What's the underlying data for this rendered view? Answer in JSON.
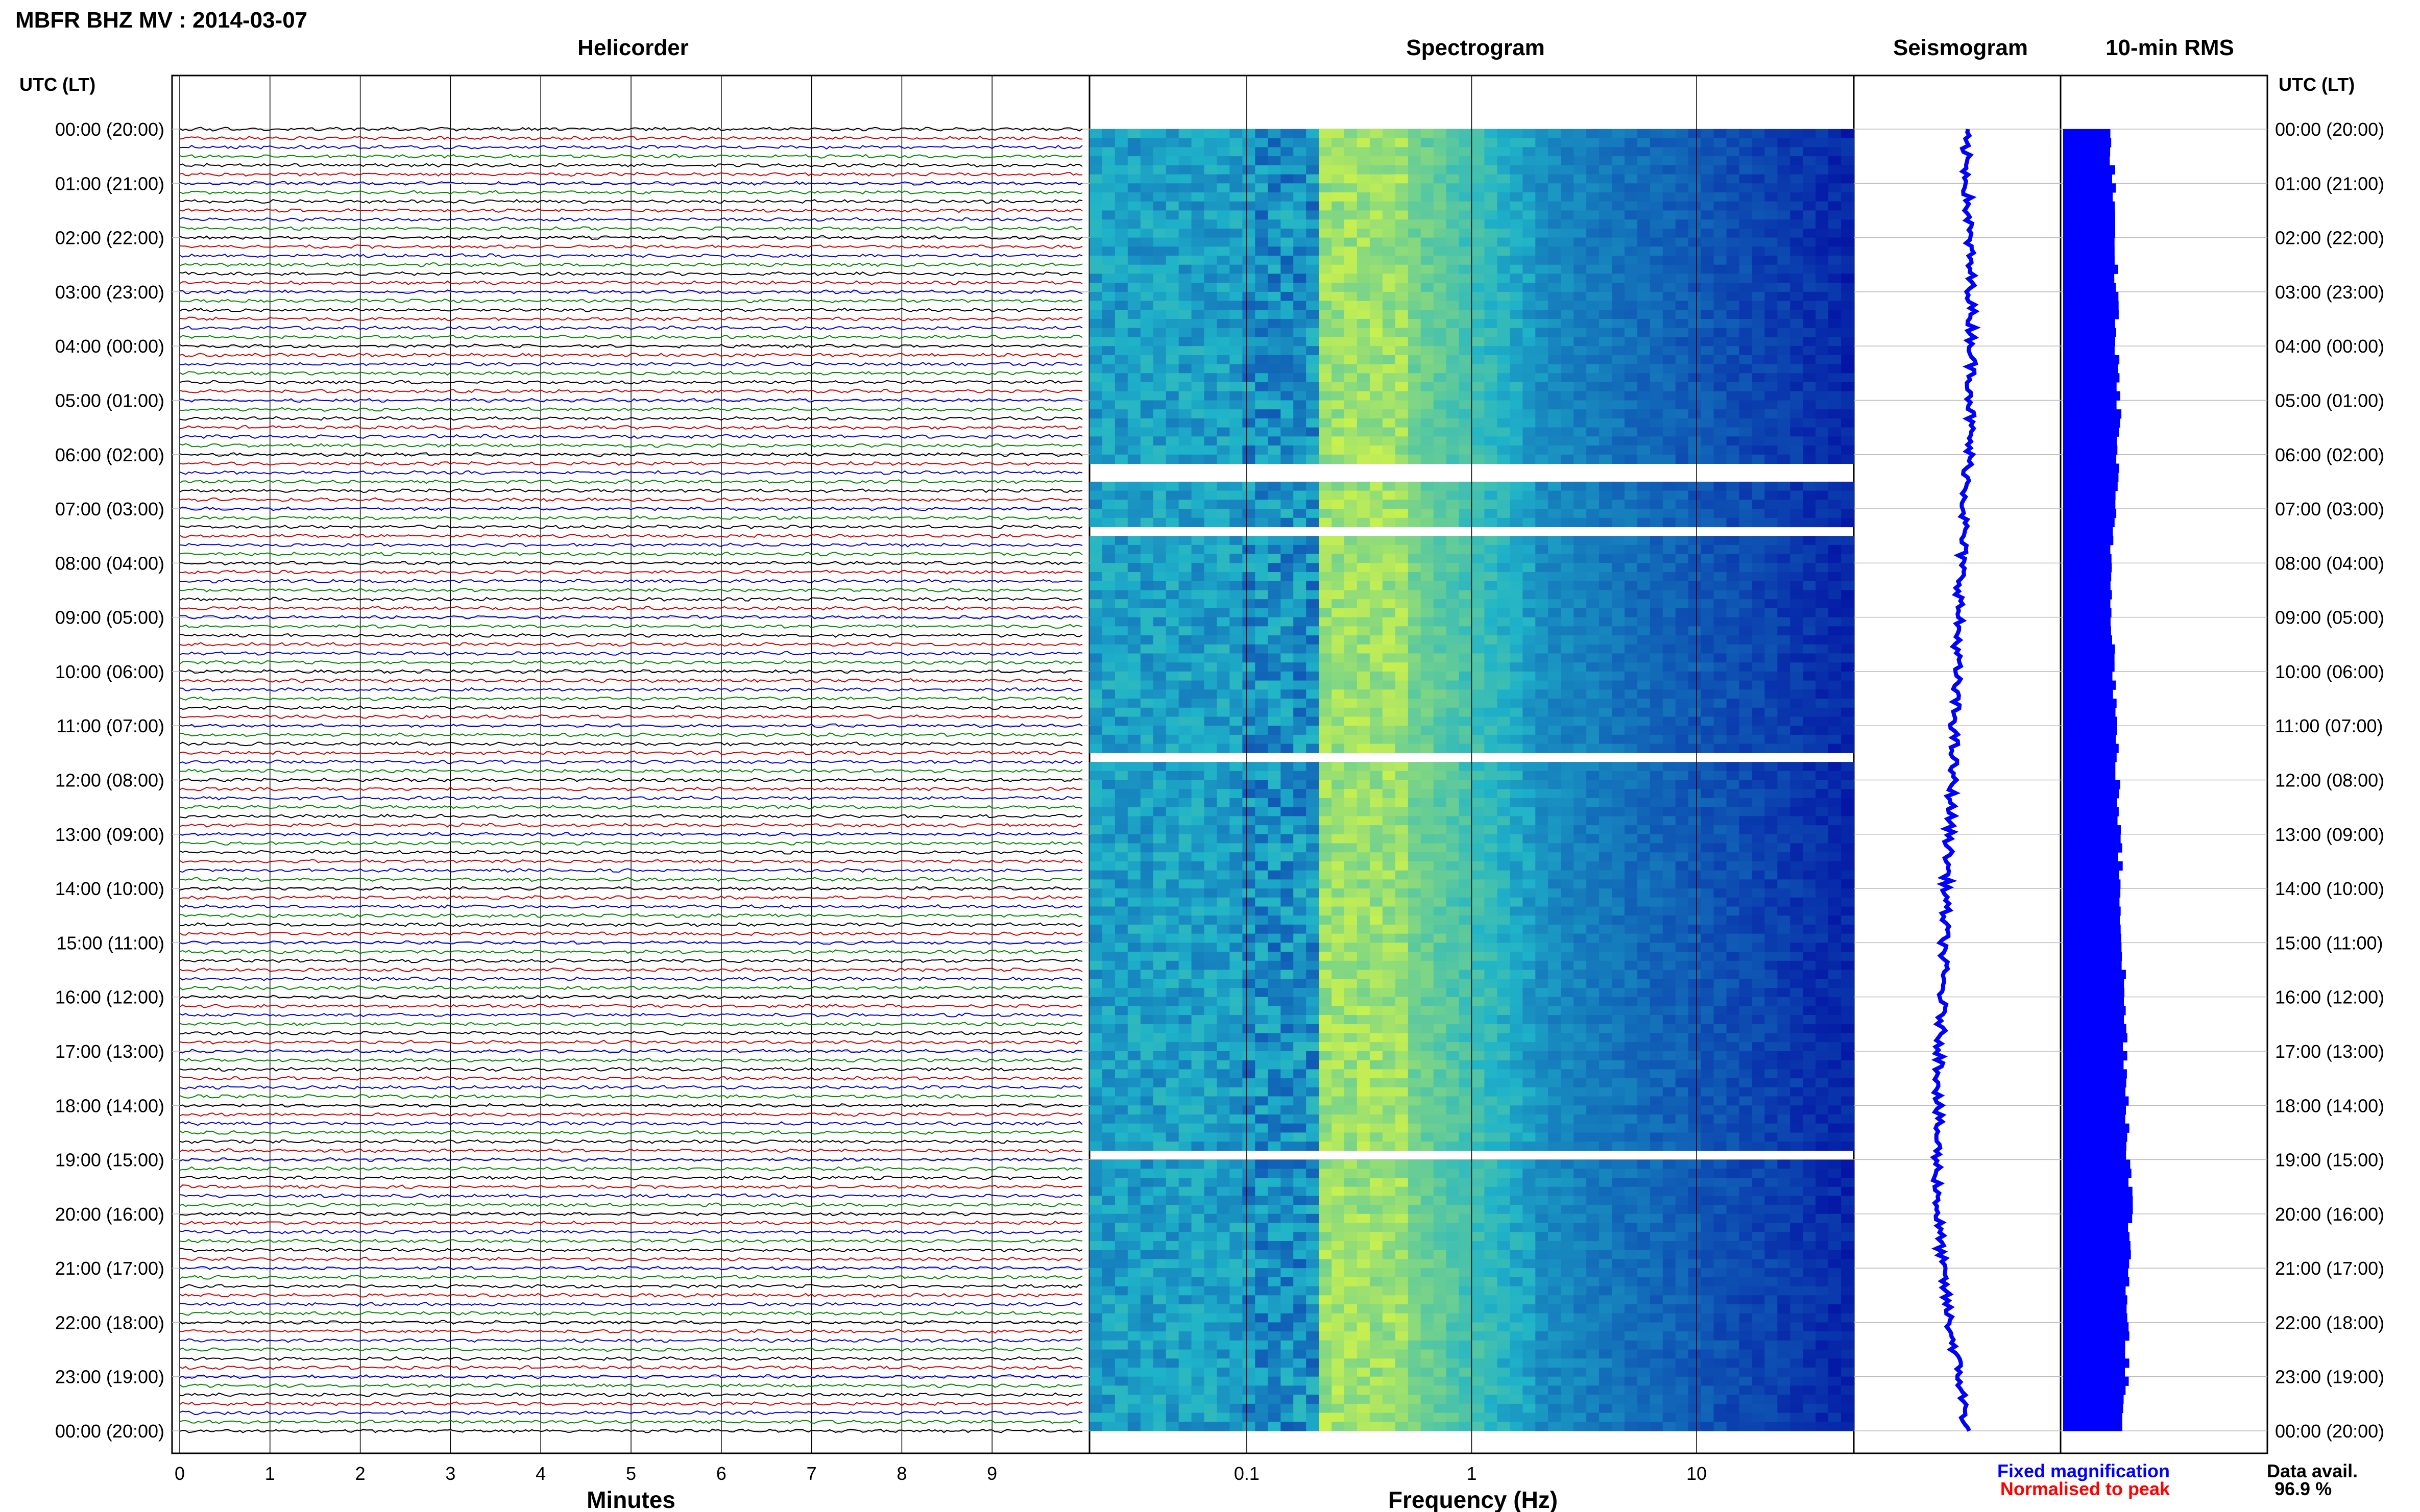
{
  "header": {
    "title": "MBFR BHZ MV : 2014-03-07"
  },
  "panels": {
    "helicorder": "Helicorder",
    "spectrogram": "Spectrogram",
    "seismogram": "Seismogram",
    "rms": "10-min RMS"
  },
  "axes": {
    "left_header": "UTC (LT)",
    "right_header": "UTC (LT)",
    "helicorder_xlabel": "Minutes",
    "spectrogram_xlabel": "Frequency (Hz)"
  },
  "legend": {
    "fixed": "Fixed magnification",
    "normalised": "Normalised to peak",
    "data_avail_label": "Data avail.",
    "data_avail_value": "96.9 %"
  },
  "colors": {
    "fixed": "#0000ff",
    "normalised": "#ff0000",
    "trace_cycle": [
      "#000000",
      "#cc0000",
      "#0000cc",
      "#008800"
    ],
    "spectro_low": "#0000a0",
    "spectro_mid": "#1fb3c9",
    "spectro_high": "#c8f050"
  },
  "chart_data": [
    {
      "type": "line",
      "name": "helicorder",
      "title": "Helicorder",
      "xlabel": "Minutes",
      "x_ticks": [
        "0",
        "1",
        "2",
        "3",
        "4",
        "5",
        "6",
        "7",
        "8",
        "9"
      ],
      "xlim": [
        0,
        10
      ],
      "y_ticks": [
        "00:00 (20:00)",
        "01:00 (21:00)",
        "02:00 (22:00)",
        "03:00 (23:00)",
        "04:00 (00:00)",
        "05:00 (01:00)",
        "06:00 (02:00)",
        "07:00 (03:00)",
        "08:00 (04:00)",
        "09:00 (05:00)",
        "10:00 (06:00)",
        "11:00 (07:00)",
        "12:00 (08:00)",
        "13:00 (09:00)",
        "14:00 (10:00)",
        "15:00 (11:00)",
        "16:00 (12:00)",
        "17:00 (13:00)",
        "18:00 (14:00)",
        "19:00 (15:00)",
        "20:00 (16:00)",
        "21:00 (17:00)",
        "22:00 (18:00)",
        "23:00 (19:00)",
        "00:00 (20:00)"
      ],
      "traces_per_hour": 6,
      "grid": true
    },
    {
      "type": "heatmap",
      "name": "spectrogram",
      "title": "Spectrogram",
      "xlabel": "Frequency (Hz)",
      "x_scale": "log",
      "xlim": [
        0.02,
        50
      ],
      "x_ticks": [
        "0.1",
        "1",
        "10"
      ],
      "peak_band_hz": [
        0.2,
        0.5
      ],
      "gap_hours": [
        [
          6.25,
          6.45
        ],
        [
          7.3,
          7.5
        ],
        [
          11.55,
          11.7
        ],
        [
          18.8,
          18.95
        ]
      ]
    },
    {
      "type": "line",
      "name": "seismogram",
      "title": "Seismogram",
      "description_series": "daily trace",
      "offsets": [
        0.0,
        0.02,
        0.04,
        0.06,
        0.07,
        0.06,
        0.04,
        0.0,
        -0.03,
        -0.06,
        -0.08,
        -0.1,
        -0.12,
        -0.15,
        -0.18,
        -0.2,
        -0.22,
        -0.24,
        -0.26,
        -0.27,
        -0.26,
        -0.22,
        -0.15,
        -0.05,
        0.02
      ],
      "xlim": [
        -1,
        1
      ]
    },
    {
      "type": "bar",
      "name": "rms",
      "title": "10-min RMS",
      "orientation": "horizontal",
      "values": [
        0.55,
        0.62,
        0.6,
        0.66,
        0.64,
        0.68,
        0.66,
        0.62,
        0.58,
        0.6,
        0.62,
        0.64,
        0.66,
        0.68,
        0.7,
        0.72,
        0.74,
        0.76,
        0.78,
        0.8,
        0.82,
        0.8,
        0.78,
        0.76,
        0.74
      ],
      "xlim": [
        0,
        1
      ]
    }
  ]
}
